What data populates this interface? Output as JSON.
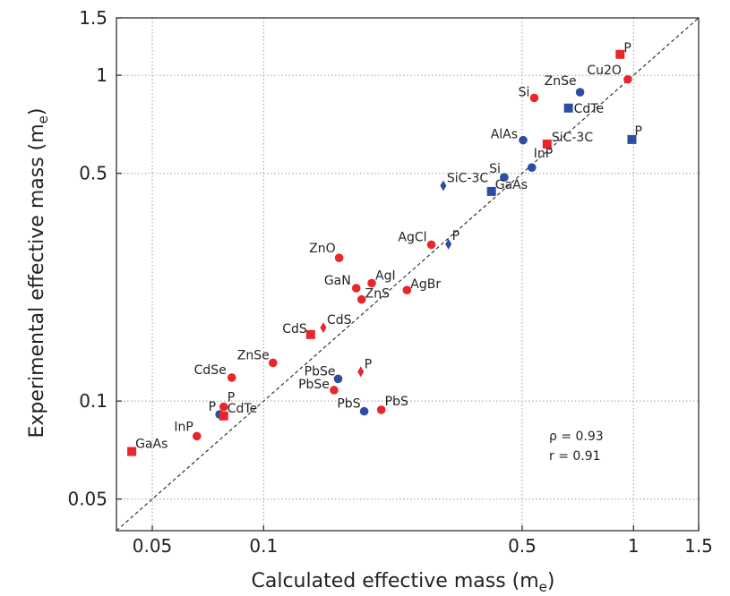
{
  "colors": {
    "red": "#e8262b",
    "blue": "#2b4ea2"
  },
  "chart_data": {
    "type": "scatter",
    "x_scale": "log",
    "y_scale": "log",
    "xlabel": "Calculated effective mass (m",
    "xlabel_sub": "e",
    "xlabel_end": ")",
    "ylabel": "Experimental effective mass (m",
    "ylabel_sub": "e",
    "ylabel_end": ")",
    "xlim": [
      0.04,
      1.5
    ],
    "ylim": [
      0.04,
      1.5
    ],
    "x_ticks": [
      0.05,
      0.1,
      0.5,
      1,
      1.5
    ],
    "x_tick_labels": [
      "0.05",
      "0.1",
      "0.5",
      "1",
      "1.5"
    ],
    "y_ticks": [
      0.05,
      0.1,
      0.5,
      1,
      1.5
    ],
    "y_tick_labels": [
      "0.05",
      "0.1",
      "0.5",
      "1",
      "1.5"
    ],
    "grid": true,
    "reference_line": "y = x",
    "annotations": [
      "ρ = 0.93",
      "r = 0.91"
    ],
    "points": [
      {
        "label": "GaAs",
        "x": 0.044,
        "y": 0.07,
        "color": "red",
        "marker": "square"
      },
      {
        "label": "InP",
        "x": 0.066,
        "y": 0.078,
        "color": "red",
        "marker": "circle"
      },
      {
        "label": "P",
        "x": 0.076,
        "y": 0.091,
        "color": "blue",
        "marker": "circle"
      },
      {
        "label": "CdTe",
        "x": 0.078,
        "y": 0.09,
        "color": "red",
        "marker": "square"
      },
      {
        "label": "P",
        "x": 0.078,
        "y": 0.096,
        "color": "red",
        "marker": "circle"
      },
      {
        "label": "CdSe",
        "x": 0.082,
        "y": 0.118,
        "color": "red",
        "marker": "circle"
      },
      {
        "label": "ZnSe",
        "x": 0.106,
        "y": 0.131,
        "color": "red",
        "marker": "circle"
      },
      {
        "label": "CdS",
        "x": 0.134,
        "y": 0.16,
        "color": "red",
        "marker": "square"
      },
      {
        "label": "CdS",
        "x": 0.145,
        "y": 0.168,
        "color": "red",
        "marker": "diamond"
      },
      {
        "label": "ZnO",
        "x": 0.16,
        "y": 0.275,
        "color": "red",
        "marker": "circle"
      },
      {
        "label": "GaN",
        "x": 0.178,
        "y": 0.222,
        "color": "red",
        "marker": "circle"
      },
      {
        "label": "ZnS",
        "x": 0.184,
        "y": 0.205,
        "color": "red",
        "marker": "circle"
      },
      {
        "label": "AgI",
        "x": 0.196,
        "y": 0.23,
        "color": "red",
        "marker": "circle"
      },
      {
        "label": "AgBr",
        "x": 0.244,
        "y": 0.219,
        "color": "red",
        "marker": "circle"
      },
      {
        "label": "AgCl",
        "x": 0.284,
        "y": 0.302,
        "color": "red",
        "marker": "circle"
      },
      {
        "label": "P",
        "x": 0.316,
        "y": 0.303,
        "color": "blue",
        "marker": "diamond"
      },
      {
        "label": "PbSe",
        "x": 0.159,
        "y": 0.117,
        "color": "blue",
        "marker": "circle"
      },
      {
        "label": "PbSe",
        "x": 0.155,
        "y": 0.108,
        "color": "red",
        "marker": "circle"
      },
      {
        "label": "P",
        "x": 0.183,
        "y": 0.123,
        "color": "red",
        "marker": "diamond"
      },
      {
        "label": "PbS",
        "x": 0.187,
        "y": 0.093,
        "color": "blue",
        "marker": "circle"
      },
      {
        "label": "PbS",
        "x": 0.208,
        "y": 0.094,
        "color": "red",
        "marker": "circle"
      },
      {
        "label": "SiC-3C",
        "x": 0.306,
        "y": 0.458,
        "color": "blue",
        "marker": "diamond"
      },
      {
        "label": "GaAs",
        "x": 0.413,
        "y": 0.44,
        "color": "blue",
        "marker": "square"
      },
      {
        "label": "Si",
        "x": 0.447,
        "y": 0.486,
        "color": "blue",
        "marker": "circle"
      },
      {
        "label": "InP",
        "x": 0.531,
        "y": 0.521,
        "color": "blue",
        "marker": "circle"
      },
      {
        "label": "AlAs",
        "x": 0.503,
        "y": 0.632,
        "color": "blue",
        "marker": "circle"
      },
      {
        "label": "SiC-3C",
        "x": 0.584,
        "y": 0.615,
        "color": "red",
        "marker": "square"
      },
      {
        "label": "Si",
        "x": 0.539,
        "y": 0.852,
        "color": "red",
        "marker": "circle"
      },
      {
        "label": "ZnSe",
        "x": 0.717,
        "y": 0.887,
        "color": "blue",
        "marker": "circle"
      },
      {
        "label": "CdTe",
        "x": 0.667,
        "y": 0.793,
        "color": "blue",
        "marker": "square"
      },
      {
        "label": "Cu2O",
        "x": 0.965,
        "y": 0.971,
        "color": "red",
        "marker": "circle"
      },
      {
        "label": "P",
        "x": 0.92,
        "y": 1.159,
        "color": "red",
        "marker": "square"
      },
      {
        "label": "P",
        "x": 0.99,
        "y": 0.635,
        "color": "blue",
        "marker": "square"
      }
    ]
  }
}
